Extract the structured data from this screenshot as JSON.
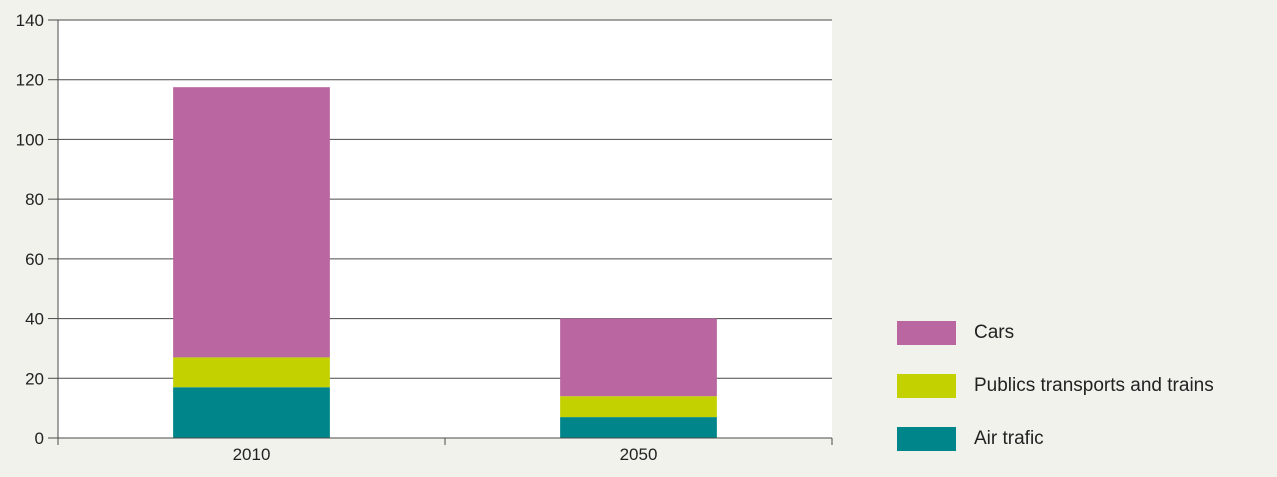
{
  "chart_data": {
    "type": "bar",
    "stacked": true,
    "categories": [
      "2010",
      "2050"
    ],
    "series": [
      {
        "name": "Air trafic",
        "values": [
          17,
          7
        ],
        "color": "#00858a"
      },
      {
        "name": "Publics transports and trains",
        "values": [
          10,
          7
        ],
        "color": "#c4d100"
      },
      {
        "name": "Cars",
        "values": [
          90.5,
          26
        ],
        "color": "#b966a1"
      }
    ],
    "title": "",
    "xlabel": "",
    "ylabel": "",
    "ylim": [
      0,
      140
    ],
    "yticks": [
      "0",
      "20",
      "40",
      "60",
      "80",
      "100",
      "120",
      "140"
    ],
    "grid": true,
    "legend_position": "right"
  },
  "legend": {
    "items": [
      {
        "label": "Cars",
        "color": "#b966a1"
      },
      {
        "label": "Publics transports and trains",
        "color": "#c4d100"
      },
      {
        "label": "Air trafic",
        "color": "#00858a"
      }
    ]
  }
}
